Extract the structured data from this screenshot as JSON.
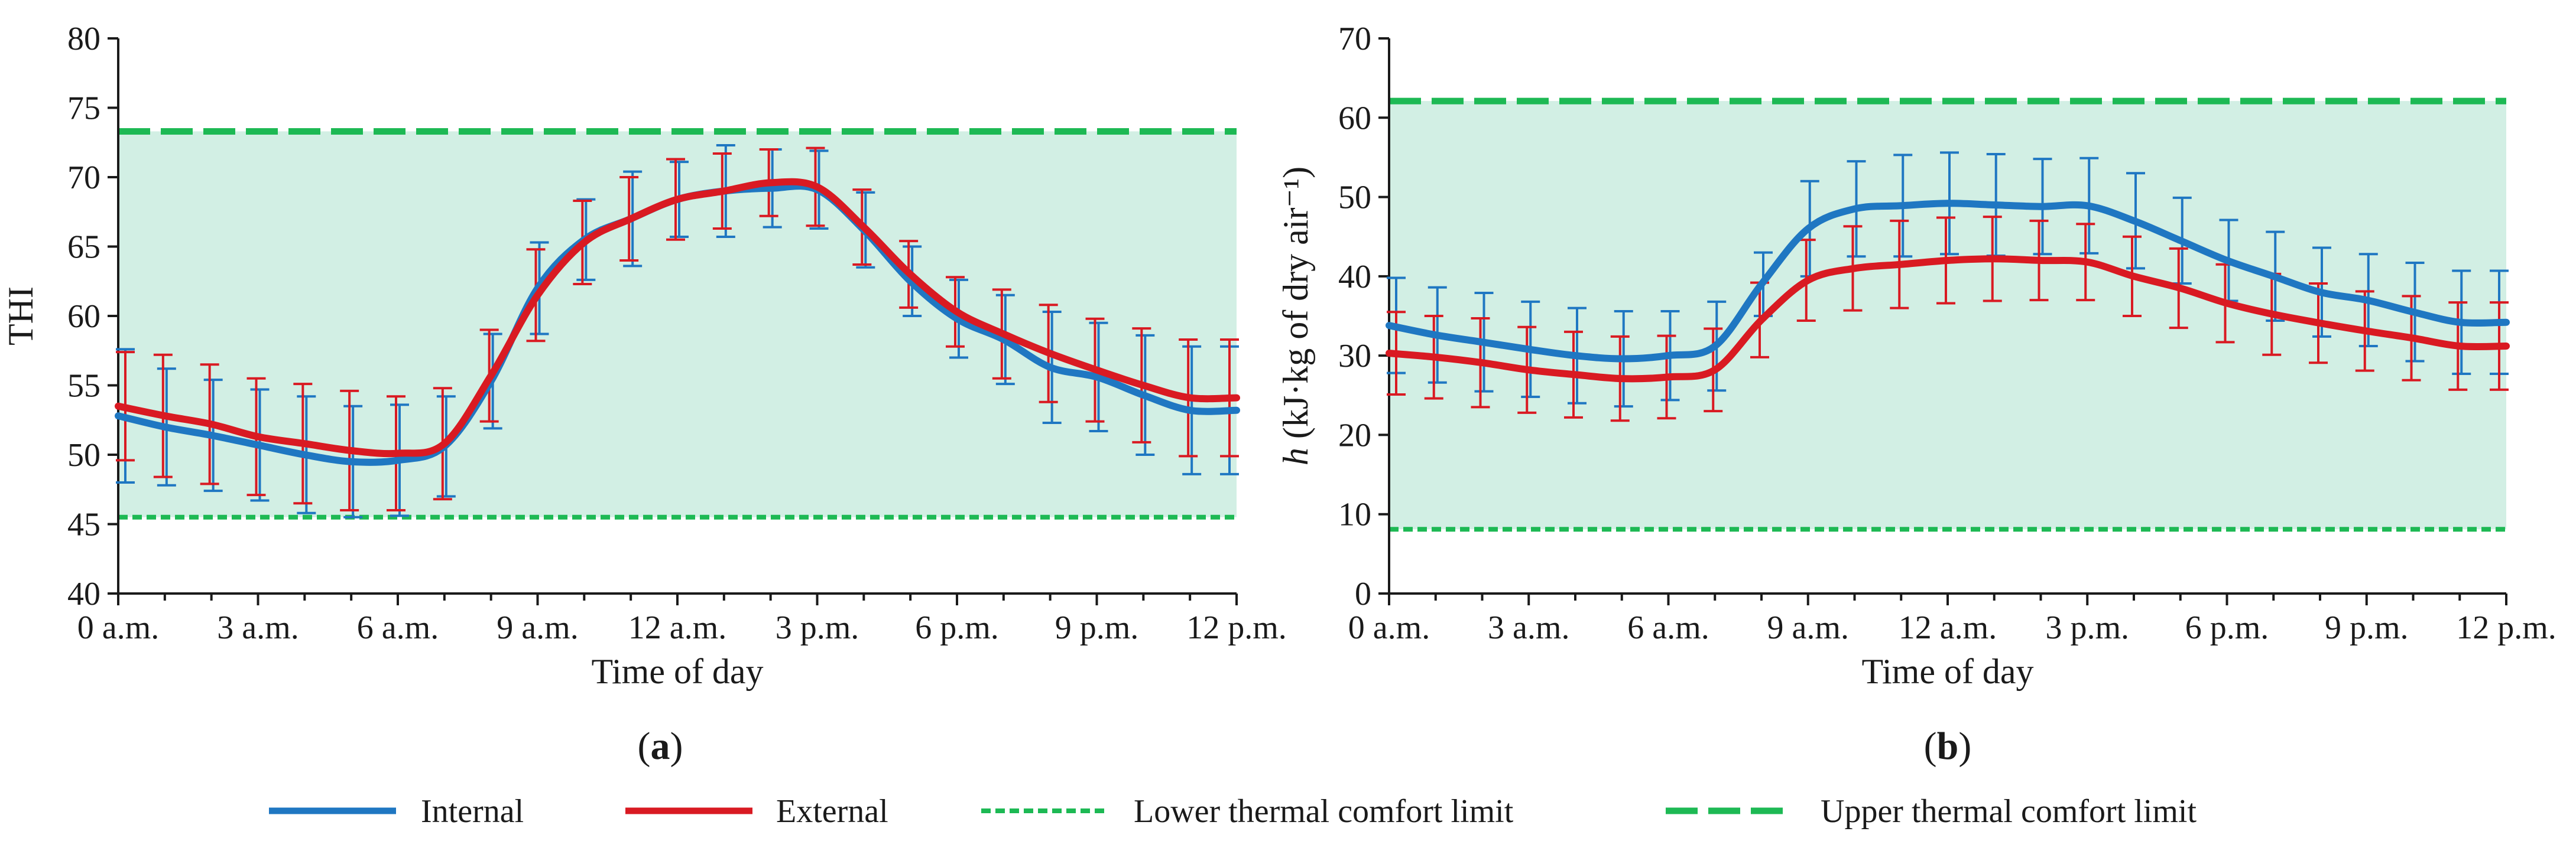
{
  "colors": {
    "internal": "#1f77c2",
    "external": "#d91a22",
    "limit": "#1db954",
    "comfort_band": "#d2efe4",
    "axis": "#1a1a1a"
  },
  "legend": {
    "internal": "Internal",
    "external": "External",
    "lower": "Lower thermal comfort limit",
    "upper": "Upper thermal comfort limit"
  },
  "chart_data": [
    {
      "type": "line",
      "panel_label": "a",
      "xlabel": "Time of day",
      "ylabel": "THI",
      "ylim": [
        40,
        80
      ],
      "yticks": [
        "40",
        "45",
        "50",
        "55",
        "60",
        "65",
        "70",
        "75",
        "80"
      ],
      "xlim": [
        0,
        24
      ],
      "xtick_labels": [
        "0 a.m.",
        "3 a.m.",
        "6 a.m.",
        "9 a.m.",
        "12 a.m.",
        "3 p.m.",
        "6 p.m.",
        "9 p.m.",
        "12 p.m."
      ],
      "lower_limit": 45.5,
      "upper_limit": 73.3,
      "x": [
        0,
        1,
        2,
        3,
        4,
        5,
        6,
        7,
        8,
        9,
        10,
        11,
        12,
        13,
        14,
        15,
        16,
        17,
        18,
        19,
        20,
        21,
        22,
        23,
        24
      ],
      "series": [
        {
          "name": "Internal",
          "values": [
            52.8,
            52.0,
            51.4,
            50.7,
            50.0,
            49.5,
            49.6,
            50.6,
            55.3,
            62.0,
            65.5,
            67.0,
            68.4,
            69.0,
            69.2,
            69.1,
            66.2,
            62.5,
            59.8,
            58.3,
            56.3,
            55.6,
            54.3,
            53.2,
            53.2
          ],
          "err": [
            4.8,
            4.2,
            4.0,
            4.0,
            4.2,
            4.0,
            4.0,
            3.6,
            3.4,
            3.3,
            2.9,
            3.4,
            2.7,
            3.3,
            2.8,
            2.8,
            2.7,
            2.5,
            2.8,
            3.2,
            4.0,
            3.9,
            4.3,
            4.6,
            4.6
          ]
        },
        {
          "name": "External",
          "values": [
            53.5,
            52.8,
            52.2,
            51.3,
            50.8,
            50.3,
            50.1,
            50.8,
            55.7,
            61.5,
            65.3,
            67.0,
            68.4,
            69.0,
            69.6,
            69.3,
            66.4,
            63.0,
            60.3,
            58.7,
            57.3,
            56.1,
            55.0,
            54.1,
            54.1
          ],
          "err": [
            3.9,
            4.4,
            4.3,
            4.2,
            4.3,
            4.3,
            4.1,
            4.0,
            3.3,
            3.3,
            3.0,
            3.0,
            2.9,
            2.7,
            2.4,
            2.8,
            2.7,
            2.4,
            2.5,
            3.2,
            3.5,
            3.7,
            4.1,
            4.2,
            4.2
          ]
        }
      ]
    },
    {
      "type": "line",
      "panel_label": "b",
      "xlabel": "Time of day",
      "ylabel": "h (kJ·kg of dry air⁻¹)",
      "ylabel_italic": "h",
      "ylabel_rest": " (kJ·kg of dry air⁻¹)",
      "ylim": [
        0,
        70
      ],
      "yticks": [
        "0",
        "10",
        "20",
        "30",
        "40",
        "50",
        "60",
        "70"
      ],
      "xlim": [
        0,
        24
      ],
      "xtick_labels": [
        "0 a.m.",
        "3 a.m.",
        "6 a.m.",
        "9 a.m.",
        "12 a.m.",
        "3 p.m.",
        "6 p.m.",
        "9 p.m.",
        "12 p.m."
      ],
      "lower_limit": 8.1,
      "upper_limit": 62.1,
      "x": [
        0,
        1,
        2,
        3,
        4,
        5,
        6,
        7,
        8,
        9,
        10,
        11,
        12,
        13,
        14,
        15,
        16,
        17,
        18,
        19,
        20,
        21,
        22,
        23,
        24
      ],
      "series": [
        {
          "name": "Internal",
          "values": [
            33.8,
            32.6,
            31.7,
            30.8,
            30.0,
            29.6,
            30.0,
            31.2,
            39.0,
            46.0,
            48.5,
            48.9,
            49.2,
            49.0,
            48.8,
            48.9,
            47.0,
            44.5,
            42.0,
            40.0,
            38.0,
            37.0,
            35.5,
            34.2,
            34.2
          ],
          "err": [
            6.0,
            6.0,
            6.2,
            6.0,
            6.0,
            6.0,
            5.6,
            5.6,
            4.0,
            6.0,
            6.0,
            6.4,
            6.4,
            6.4,
            6.0,
            6.0,
            6.0,
            5.4,
            5.1,
            5.6,
            5.6,
            5.8,
            6.2,
            6.5,
            6.5
          ]
        },
        {
          "name": "External",
          "values": [
            30.3,
            29.8,
            29.1,
            28.2,
            27.6,
            27.1,
            27.3,
            28.2,
            34.5,
            39.5,
            41.0,
            41.5,
            42.0,
            42.2,
            42.0,
            41.8,
            40.0,
            38.5,
            36.6,
            35.2,
            34.1,
            33.1,
            32.2,
            31.2,
            31.2
          ],
          "err": [
            5.2,
            5.2,
            5.6,
            5.4,
            5.4,
            5.3,
            5.2,
            5.2,
            4.7,
            5.1,
            5.3,
            5.5,
            5.4,
            5.3,
            5.0,
            4.8,
            5.0,
            5.0,
            4.9,
            5.1,
            5.0,
            5.0,
            5.3,
            5.5,
            5.5
          ]
        }
      ]
    }
  ]
}
